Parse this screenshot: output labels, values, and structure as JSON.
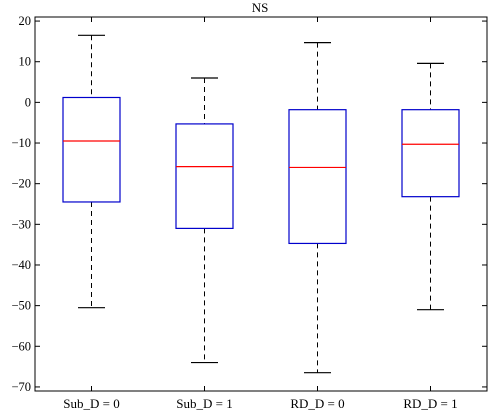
{
  "chart_data": {
    "type": "box",
    "title": "NS",
    "xlabel": "",
    "ylabel": "",
    "categories": [
      "Sub_D = 0",
      "Sub_D = 1",
      "RD_D = 0",
      "RD_D = 1"
    ],
    "boxes": [
      {
        "whisker_low": -50.5,
        "q1": -24.5,
        "median": -9.5,
        "q3": 1.2,
        "whisker_high": 16.5
      },
      {
        "whisker_low": -64,
        "q1": -31,
        "median": -15.8,
        "q3": -5.3,
        "whisker_high": 6
      },
      {
        "whisker_low": -66.5,
        "q1": -34.7,
        "median": -16,
        "q3": -1.8,
        "whisker_high": 14.7
      },
      {
        "whisker_low": -51,
        "q1": -23.2,
        "median": -10.3,
        "q3": -1.8,
        "whisker_high": 9.6
      }
    ],
    "ylim": [
      -71,
      21
    ],
    "yticks": [
      20,
      10,
      0,
      -10,
      -20,
      -30,
      -40,
      -50,
      -60,
      -70
    ],
    "grid": false,
    "colors": {
      "box": "#0000cc",
      "median": "#ff0000",
      "whisker": "#000000",
      "axes": "#000000"
    }
  }
}
